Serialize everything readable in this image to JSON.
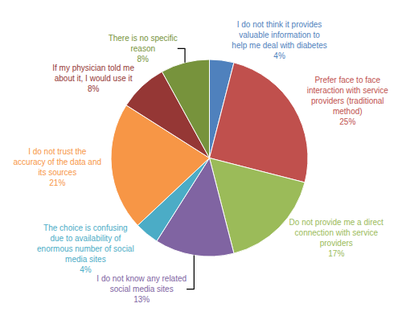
{
  "chart_data": {
    "type": "pie",
    "categories": [
      "I do not think it provides valuable information to help me deal with diabetes",
      "Prefer face to face interaction with service providers (traditional method)",
      "Do not provide me a direct connection with service providers",
      "I do not know any related social media sites",
      "The choice is confusing due to availability of enormous number of social media sites",
      "I do not trust the accuracy of the data and its sources",
      "If my physician told me about it, I would use it",
      "There is no specific reason"
    ],
    "values": [
      4,
      25,
      17,
      13,
      4,
      21,
      8,
      8
    ],
    "value_labels": [
      "4%",
      "25%",
      "17%",
      "13%",
      "4%",
      "21%",
      "8%",
      "8%"
    ],
    "colors": [
      "#4F81BD",
      "#C0504D",
      "#9BBB59",
      "#8064A2",
      "#4BACC6",
      "#F79646",
      "#953735",
      "#77933C"
    ],
    "data_labels": true
  }
}
